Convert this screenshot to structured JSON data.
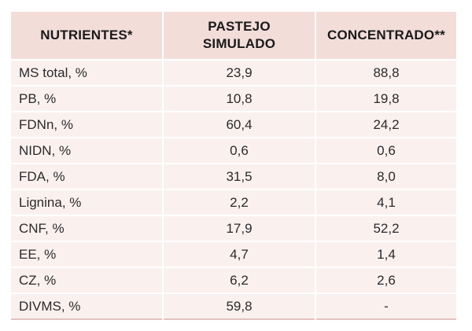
{
  "table": {
    "headers": [
      [
        "NUTRIENTES*"
      ],
      [
        "PASTEJO",
        "SIMULADO"
      ],
      [
        "CONCENTRADO**"
      ]
    ],
    "rows": [
      [
        "MS total, %",
        "23,9",
        "88,8"
      ],
      [
        "PB, %",
        "10,8",
        "19,8"
      ],
      [
        "FDNn, %",
        "60,4",
        "24,2"
      ],
      [
        "NIDN, %",
        "0,6",
        "0,6"
      ],
      [
        "FDA, %",
        "31,5",
        "8,0"
      ],
      [
        "Lignina, %",
        "2,2",
        "4,1"
      ],
      [
        "CNF, %",
        "17,9",
        "52,2"
      ],
      [
        "EE, %",
        "4,7",
        "1,4"
      ],
      [
        "CZ, %",
        "6,2",
        "2,6"
      ],
      [
        "DIVMS, %",
        "59,8",
        "-"
      ]
    ]
  }
}
